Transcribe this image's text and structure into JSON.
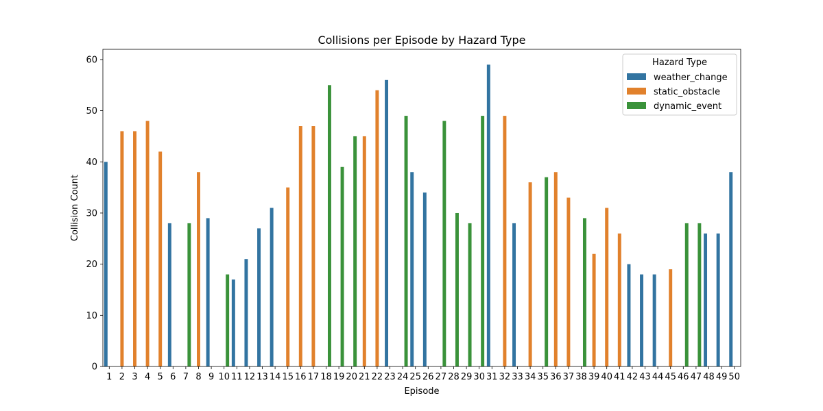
{
  "chart_data": {
    "type": "bar",
    "title": "Collisions per Episode by Hazard Type",
    "xlabel": "Episode",
    "ylabel": "Collision Count",
    "ylim": [
      0,
      62
    ],
    "yticks": [
      0,
      10,
      20,
      30,
      40,
      50,
      60
    ],
    "grid": false,
    "legend_position": "top-right",
    "legend_title": "Hazard Type",
    "series": [
      {
        "name": "weather_change",
        "color": "#3274a1"
      },
      {
        "name": "static_obstacle",
        "color": "#e1812c"
      },
      {
        "name": "dynamic_event",
        "color": "#3a923a"
      }
    ],
    "categories": [
      "1",
      "2",
      "3",
      "4",
      "5",
      "6",
      "7",
      "8",
      "9",
      "10",
      "11",
      "12",
      "13",
      "14",
      "15",
      "16",
      "17",
      "18",
      "19",
      "20",
      "21",
      "22",
      "23",
      "24",
      "25",
      "26",
      "27",
      "28",
      "29",
      "30",
      "31",
      "32",
      "33",
      "34",
      "35",
      "36",
      "37",
      "38",
      "39",
      "40",
      "41",
      "42",
      "43",
      "44",
      "45",
      "46",
      "47",
      "48",
      "49",
      "50"
    ],
    "bars": [
      {
        "episode": "1",
        "hazard": "weather_change",
        "value": 40
      },
      {
        "episode": "2",
        "hazard": "static_obstacle",
        "value": 46
      },
      {
        "episode": "3",
        "hazard": "static_obstacle",
        "value": 46
      },
      {
        "episode": "4",
        "hazard": "static_obstacle",
        "value": 48
      },
      {
        "episode": "5",
        "hazard": "static_obstacle",
        "value": 42
      },
      {
        "episode": "6",
        "hazard": "weather_change",
        "value": 28
      },
      {
        "episode": "7",
        "hazard": "dynamic_event",
        "value": 28
      },
      {
        "episode": "8",
        "hazard": "static_obstacle",
        "value": 38
      },
      {
        "episode": "9",
        "hazard": "weather_change",
        "value": 29
      },
      {
        "episode": "10",
        "hazard": "dynamic_event",
        "value": 18
      },
      {
        "episode": "11",
        "hazard": "weather_change",
        "value": 17
      },
      {
        "episode": "12",
        "hazard": "weather_change",
        "value": 21
      },
      {
        "episode": "13",
        "hazard": "weather_change",
        "value": 27
      },
      {
        "episode": "14",
        "hazard": "weather_change",
        "value": 31
      },
      {
        "episode": "15",
        "hazard": "static_obstacle",
        "value": 35
      },
      {
        "episode": "16",
        "hazard": "static_obstacle",
        "value": 47
      },
      {
        "episode": "17",
        "hazard": "static_obstacle",
        "value": 47
      },
      {
        "episode": "18",
        "hazard": "dynamic_event",
        "value": 55
      },
      {
        "episode": "19",
        "hazard": "dynamic_event",
        "value": 39
      },
      {
        "episode": "20",
        "hazard": "dynamic_event",
        "value": 45
      },
      {
        "episode": "21",
        "hazard": "static_obstacle",
        "value": 45
      },
      {
        "episode": "22",
        "hazard": "static_obstacle",
        "value": 54
      },
      {
        "episode": "23",
        "hazard": "weather_change",
        "value": 56
      },
      {
        "episode": "24",
        "hazard": "dynamic_event",
        "value": 49
      },
      {
        "episode": "25",
        "hazard": "weather_change",
        "value": 38
      },
      {
        "episode": "26",
        "hazard": "weather_change",
        "value": 34
      },
      {
        "episode": "27",
        "hazard": "dynamic_event",
        "value": 48
      },
      {
        "episode": "28",
        "hazard": "dynamic_event",
        "value": 30
      },
      {
        "episode": "29",
        "hazard": "dynamic_event",
        "value": 28
      },
      {
        "episode": "30",
        "hazard": "dynamic_event",
        "value": 49
      },
      {
        "episode": "31",
        "hazard": "weather_change",
        "value": 59
      },
      {
        "episode": "32",
        "hazard": "static_obstacle",
        "value": 49
      },
      {
        "episode": "33",
        "hazard": "weather_change",
        "value": 28
      },
      {
        "episode": "34",
        "hazard": "static_obstacle",
        "value": 36
      },
      {
        "episode": "35",
        "hazard": "dynamic_event",
        "value": 37
      },
      {
        "episode": "36",
        "hazard": "static_obstacle",
        "value": 38
      },
      {
        "episode": "37",
        "hazard": "static_obstacle",
        "value": 33
      },
      {
        "episode": "38",
        "hazard": "dynamic_event",
        "value": 29
      },
      {
        "episode": "39",
        "hazard": "static_obstacle",
        "value": 22
      },
      {
        "episode": "40",
        "hazard": "static_obstacle",
        "value": 31
      },
      {
        "episode": "41",
        "hazard": "static_obstacle",
        "value": 26
      },
      {
        "episode": "42",
        "hazard": "weather_change",
        "value": 20
      },
      {
        "episode": "43",
        "hazard": "weather_change",
        "value": 18
      },
      {
        "episode": "44",
        "hazard": "weather_change",
        "value": 18
      },
      {
        "episode": "45",
        "hazard": "static_obstacle",
        "value": 19
      },
      {
        "episode": "46",
        "hazard": "dynamic_event",
        "value": 28
      },
      {
        "episode": "47",
        "hazard": "dynamic_event",
        "value": 28
      },
      {
        "episode": "48",
        "hazard": "weather_change",
        "value": 26
      },
      {
        "episode": "49",
        "hazard": "weather_change",
        "value": 26
      },
      {
        "episode": "50",
        "hazard": "weather_change",
        "value": 38
      }
    ]
  }
}
